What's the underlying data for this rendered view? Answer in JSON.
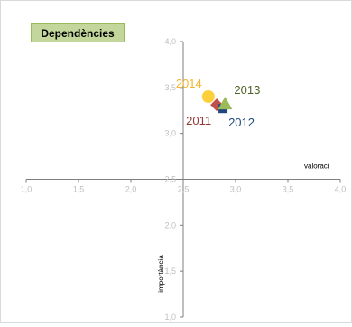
{
  "chart_data": {
    "type": "scatter",
    "title": "Dependències",
    "xlabel": "valoraci",
    "ylabel": "importància",
    "xlim": [
      1.0,
      4.0
    ],
    "ylim": [
      1.0,
      4.0
    ],
    "x_cross": 2.5,
    "y_cross": 2.5,
    "x_ticks": [
      "1,0",
      "1,5",
      "2,0",
      "2,5",
      "3,0",
      "3,5",
      "4,0"
    ],
    "y_ticks": [
      "1,0",
      "1,5",
      "2,0",
      "2,5",
      "3,0",
      "3,5",
      "4,0"
    ],
    "grid": false,
    "legend": "none",
    "points": [
      {
        "label": "2011",
        "x": 2.82,
        "y": 3.31,
        "color": "#c0504d",
        "label_color": "#953735",
        "marker": "diamond"
      },
      {
        "label": "2012",
        "x": 2.88,
        "y": 3.27,
        "color": "#1f497d",
        "label_color": "#1f497d",
        "marker": "square"
      },
      {
        "label": "2013",
        "x": 2.9,
        "y": 3.32,
        "color": "#9bbb59",
        "label_color": "#4f6228",
        "marker": "triangle"
      },
      {
        "label": "2014",
        "x": 2.74,
        "y": 3.4,
        "color": "#fcd03b",
        "label_color": "#f2b630",
        "marker": "circle"
      }
    ]
  }
}
